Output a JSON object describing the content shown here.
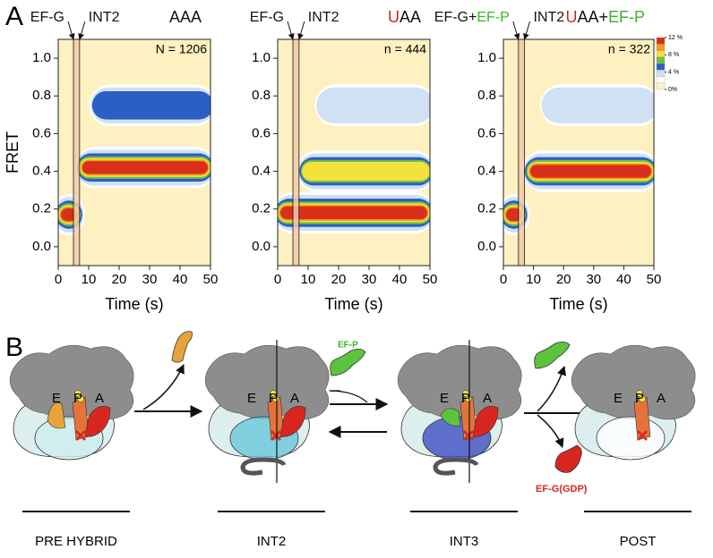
{
  "chart_data": [
    {
      "type": "contour",
      "title_parts": [
        "AAA"
      ],
      "title_colors": [
        "#111111"
      ],
      "n_label": "N = 1206",
      "ylabel": "FRET",
      "xlabel": "Time (s)",
      "xlim": [
        0,
        50
      ],
      "ylim": [
        -0.1,
        1.1
      ],
      "xticks": [
        0,
        10,
        20,
        30,
        40,
        50
      ],
      "yticks": [
        {
          "value": 0,
          "label": "0.0"
        },
        {
          "value": 0.2,
          "label": "0.2"
        },
        {
          "value": 0.4,
          "label": "0.4"
        },
        {
          "value": 0.6,
          "label": "0.6"
        },
        {
          "value": 0.8,
          "label": "0.8"
        },
        {
          "value": 1.0,
          "label": "1.0"
        }
      ],
      "band": [
        5,
        7
      ],
      "annotations": [
        {
          "x": 5,
          "parts": [
            "EF-G"
          ],
          "colors": [
            "#111111"
          ]
        },
        {
          "x": 7,
          "parts": [
            "INT2"
          ],
          "colors": [
            "#111111"
          ]
        }
      ],
      "regions": [
        {
          "x": [
            0,
            7
          ],
          "y": 0.17,
          "level": 12
        },
        {
          "x": [
            7,
            50
          ],
          "y": 0.42,
          "level": 12
        },
        {
          "x": [
            12,
            50
          ],
          "y": 0.75,
          "level": 4
        }
      ]
    },
    {
      "type": "contour",
      "title_parts": [
        "U",
        "AA"
      ],
      "title_colors": [
        "#c0282d",
        "#111111"
      ],
      "n_label": "n = 444",
      "xlabel": "Time (s)",
      "xlim": [
        0,
        50
      ],
      "ylim": [
        -0.1,
        1.1
      ],
      "xticks": [
        0,
        10,
        20,
        30,
        40,
        50
      ],
      "yticks": [
        {
          "value": 0,
          "label": "0.0"
        },
        {
          "value": 0.2,
          "label": "0.2"
        },
        {
          "value": 0.4,
          "label": "0.4"
        },
        {
          "value": 0.6,
          "label": "0.6"
        },
        {
          "value": 0.8,
          "label": "0.8"
        },
        {
          "value": 1.0,
          "label": "1.0"
        }
      ],
      "band": [
        5,
        7
      ],
      "annotations": [
        {
          "x": 5,
          "parts": [
            "EF-G"
          ],
          "colors": [
            "#111111"
          ]
        },
        {
          "x": 7,
          "parts": [
            "INT2"
          ],
          "colors": [
            "#111111"
          ]
        }
      ],
      "regions": [
        {
          "x": [
            0,
            50
          ],
          "y": 0.18,
          "level": 12
        },
        {
          "x": [
            8,
            50
          ],
          "y": 0.4,
          "level": 8
        },
        {
          "x": [
            14,
            50
          ],
          "y": 0.75,
          "level": 2
        }
      ]
    },
    {
      "type": "contour",
      "title_parts": [
        "U",
        "AA+",
        "EF-P"
      ],
      "title_colors": [
        "#c0282d",
        "#111111",
        "#3cb521"
      ],
      "n_label": "n = 322",
      "xlabel": "Time (s)",
      "xlim": [
        0,
        50
      ],
      "ylim": [
        -0.1,
        1.1
      ],
      "xticks": [
        0,
        10,
        20,
        30,
        40,
        50
      ],
      "yticks": [
        {
          "value": 0,
          "label": "0.0"
        },
        {
          "value": 0.2,
          "label": "0.2"
        },
        {
          "value": 0.4,
          "label": "0.4"
        },
        {
          "value": 0.6,
          "label": "0.6"
        },
        {
          "value": 0.8,
          "label": "0.8"
        },
        {
          "value": 1.0,
          "label": "1.0"
        }
      ],
      "band": [
        5,
        7
      ],
      "annotations": [
        {
          "x": 5,
          "parts": [
            "EF-G+",
            "EF-P"
          ],
          "colors": [
            "#111111",
            "#3cb521"
          ]
        },
        {
          "x": 7,
          "parts": [
            "INT2"
          ],
          "colors": [
            "#111111"
          ]
        }
      ],
      "regions": [
        {
          "x": [
            0,
            7
          ],
          "y": 0.17,
          "level": 12
        },
        {
          "x": [
            8,
            50
          ],
          "y": 0.4,
          "level": 12
        },
        {
          "x": [
            14,
            50
          ],
          "y": 0.75,
          "level": 2
        }
      ],
      "colorbar": {
        "ticks": [
          {
            "value": 0,
            "label": "0%"
          },
          {
            "value": 4,
            "label": "4 %"
          },
          {
            "value": 8,
            "label": "8 %"
          },
          {
            "value": 12,
            "label": "12 %"
          }
        ]
      }
    }
  ],
  "panel_labels": [
    "A",
    "B"
  ],
  "diagram": {
    "stages": [
      {
        "label": "PRE HYBRID",
        "sites": [
          "E",
          "P",
          "A"
        ]
      },
      {
        "label": "INT2",
        "sites": [
          "E",
          "P",
          "A"
        ]
      },
      {
        "label": "INT3",
        "sites": [
          "E",
          "P",
          "A"
        ]
      },
      {
        "label": "POST",
        "sites": [
          "E",
          "P",
          "A"
        ]
      }
    ],
    "ef_p": "EF-P",
    "ef_g": "EF-G(GDP)"
  }
}
